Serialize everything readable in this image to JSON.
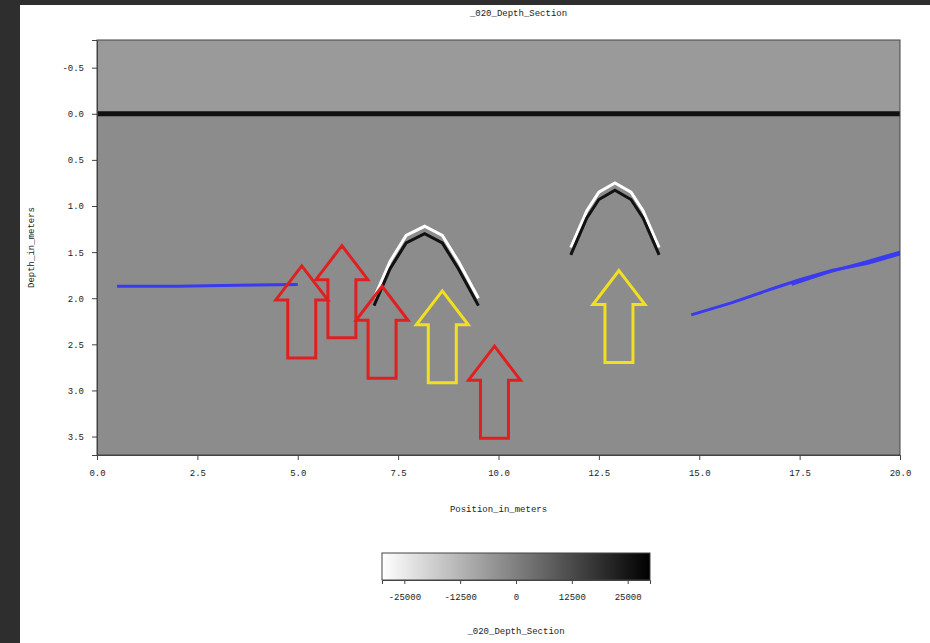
{
  "chart_data": {
    "type": "line",
    "title": "_020_Depth_Section",
    "x_label": "Position_in_meters",
    "y_label": "Depth_in_meters",
    "xlim": [
      0,
      20
    ],
    "xticks": [
      {
        "value": 0,
        "label": "0.0"
      },
      {
        "value": 2.5,
        "label": "2.5"
      },
      {
        "value": 5,
        "label": "5.0"
      },
      {
        "value": 7.5,
        "label": "7.5"
      },
      {
        "value": 10,
        "label": "10.0"
      },
      {
        "value": 12.5,
        "label": "12.5"
      },
      {
        "value": 15,
        "label": "15.0"
      },
      {
        "value": 17.5,
        "label": "17.5"
      },
      {
        "value": 20,
        "label": "20.0"
      }
    ],
    "ylim": [
      3.7,
      -0.8
    ],
    "yticks": [
      {
        "value": -0.5,
        "label": "-0.5"
      },
      {
        "value": 0,
        "label": "0.0"
      },
      {
        "value": 0.5,
        "label": "0.5"
      },
      {
        "value": 1,
        "label": "1.0"
      },
      {
        "value": 1.5,
        "label": "1.5"
      },
      {
        "value": 2,
        "label": "2.0"
      },
      {
        "value": 2.5,
        "label": "2.5"
      },
      {
        "value": 3,
        "label": "3.0"
      },
      {
        "value": 3.5,
        "label": "3.5"
      }
    ],
    "grid": false,
    "colorbar": {
      "range": [
        -30000,
        30000
      ],
      "ticks": [
        -25000,
        -12500,
        0,
        12500,
        25000
      ],
      "label": "_020_Depth_Section"
    },
    "series": [
      {
        "type": "line",
        "color": "#111111",
        "line_style": "solid",
        "x": [
          0,
          20
        ],
        "values": [
          0,
          0
        ]
      },
      {
        "type": "line",
        "color": "#ffffff",
        "line_style": "solid",
        "x": [
          6.9,
          7.3,
          7.7,
          8.16,
          8.6,
          9.0,
          9.5
        ],
        "values": [
          2.0,
          1.6,
          1.32,
          1.22,
          1.32,
          1.6,
          2.0
        ]
      },
      {
        "type": "line",
        "color": "#111111",
        "line_style": "solid",
        "x": [
          6.9,
          7.3,
          7.7,
          8.16,
          8.6,
          9.0,
          9.5
        ],
        "values": [
          2.08,
          1.68,
          1.4,
          1.3,
          1.4,
          1.68,
          2.08
        ]
      },
      {
        "type": "line",
        "color": "#ffffff",
        "line_style": "solid",
        "x": [
          11.8,
          12.2,
          12.5,
          12.9,
          13.3,
          13.6,
          14.0
        ],
        "values": [
          1.45,
          1.05,
          0.85,
          0.75,
          0.85,
          1.05,
          1.45
        ]
      },
      {
        "type": "line",
        "color": "#111111",
        "line_style": "solid",
        "x": [
          11.8,
          12.2,
          12.5,
          12.9,
          13.3,
          13.6,
          14.0
        ],
        "values": [
          1.53,
          1.13,
          0.93,
          0.83,
          0.93,
          1.13,
          1.53
        ]
      },
      {
        "type": "line",
        "color": "#3a3af0",
        "line_style": "solid",
        "x": [
          0.5,
          2.0,
          3.5,
          5.0
        ],
        "values": [
          1.87,
          1.87,
          1.86,
          1.85
        ]
      },
      {
        "type": "line",
        "color": "#3a3af0",
        "line_style": "solid",
        "x": [
          14.8,
          15.8,
          16.8,
          17.5,
          18.3,
          19.2,
          20.0
        ],
        "values": [
          2.18,
          2.05,
          1.9,
          1.8,
          1.7,
          1.62,
          1.52
        ]
      },
      {
        "type": "line",
        "color": "#3a3af0",
        "line_style": "solid",
        "x": [
          17.3,
          18.2,
          19.2,
          20.0
        ],
        "values": [
          1.85,
          1.72,
          1.6,
          1.5
        ]
      },
      {
        "type": "scatter",
        "marker": "arrow",
        "color": "#e02020",
        "x": [
          5.1,
          6.1,
          7.1,
          9.9
        ],
        "values": [
          1.65,
          1.43,
          1.87,
          2.52
        ]
      },
      {
        "type": "scatter",
        "marker": "arrow",
        "color": "#f0e020",
        "x": [
          8.6,
          13.0
        ],
        "values": [
          1.92,
          1.7
        ]
      }
    ]
  }
}
